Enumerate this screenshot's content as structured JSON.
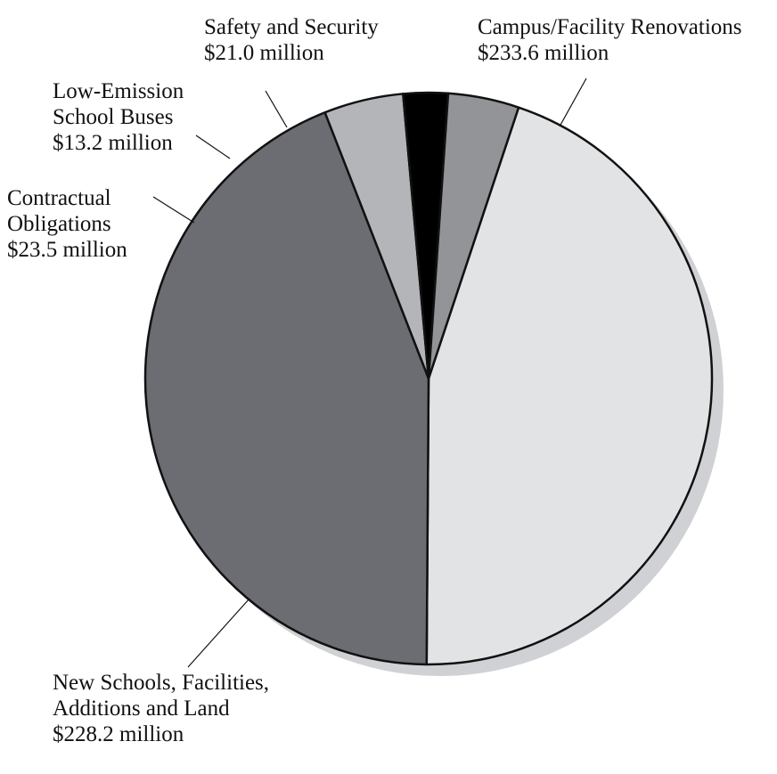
{
  "chart_data": {
    "type": "pie",
    "title": "",
    "slices": [
      {
        "lines": [
          "Campus/Facility Renovations",
          "$233.6 million"
        ],
        "value": 233.6,
        "color": "#e2e3e5"
      },
      {
        "lines": [
          "New Schools, Facilities,",
          "Additions and Land",
          "$228.2 million"
        ],
        "value": 228.2,
        "color": "#6c6d72"
      },
      {
        "lines": [
          "Contractual",
          "Obligations",
          "$23.5 million"
        ],
        "value": 23.5,
        "color": "#b4b5b9"
      },
      {
        "lines": [
          "Low-Emission",
          "School Buses",
          "$13.2 million"
        ],
        "value": 13.2,
        "color": "#000000"
      },
      {
        "lines": [
          "Safety and Security",
          "$21.0 million"
        ],
        "value": 21.0,
        "color": "#939498"
      }
    ],
    "units": "million",
    "shadow_color": "#d0d1d4"
  }
}
